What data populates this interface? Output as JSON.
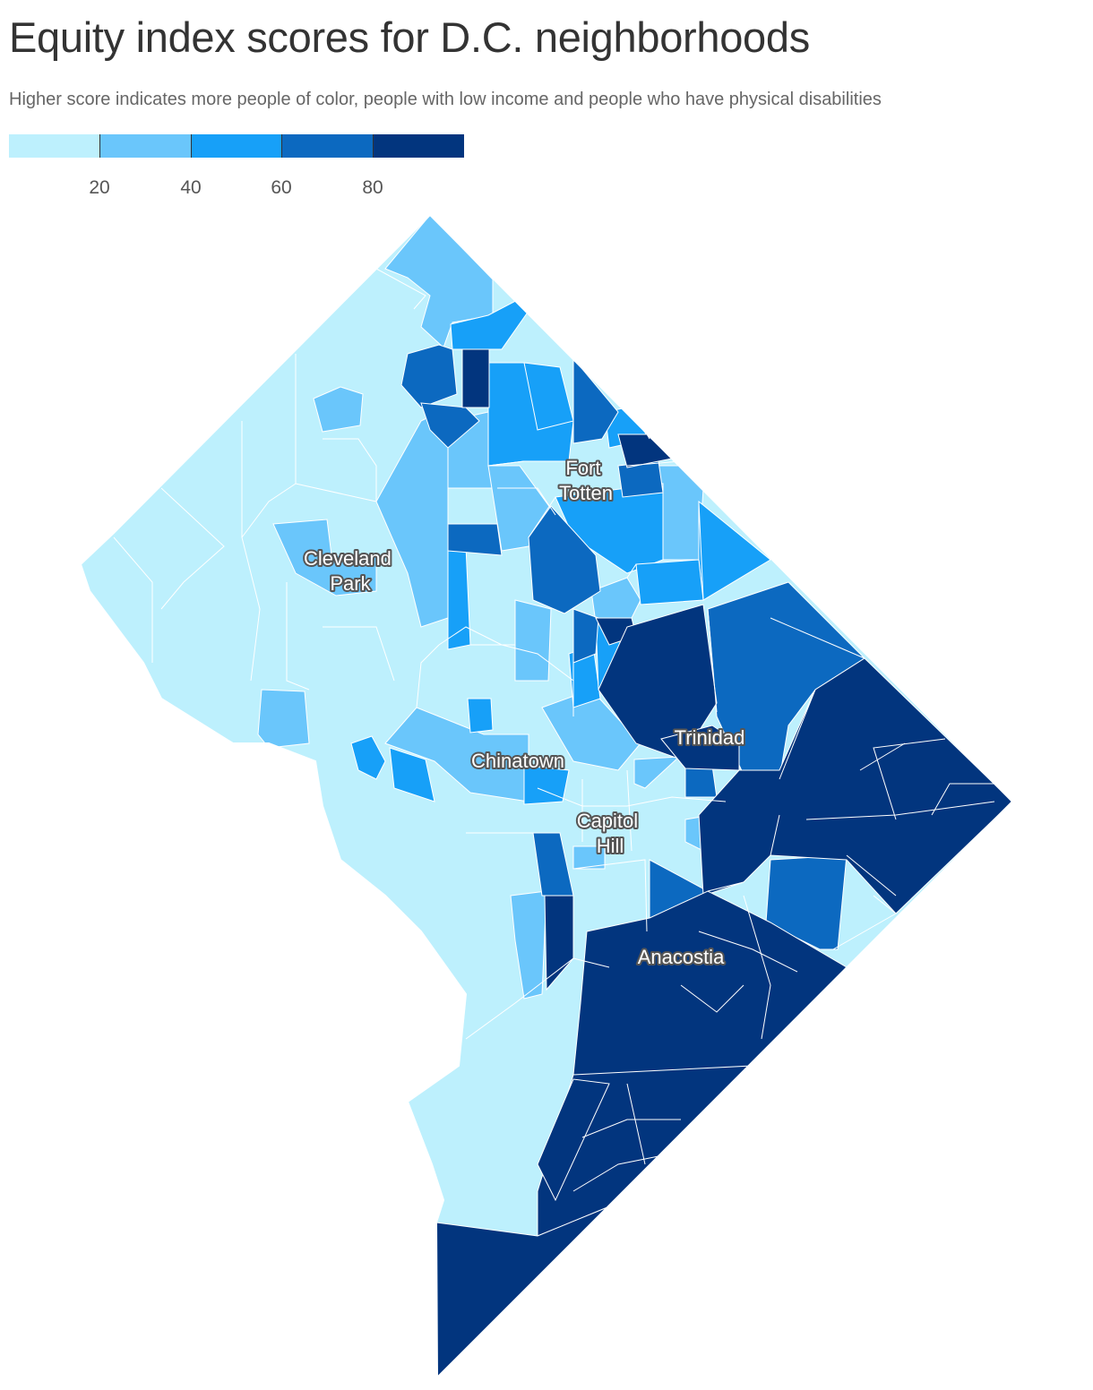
{
  "title": "Equity index scores for D.C. neighborhoods",
  "subtitle": "Higher score indicates more people of color, people with low income and people who have physical disabilities",
  "legend": {
    "colors": [
      "#bdf0fd",
      "#6ac6fb",
      "#17a0f8",
      "#0c69c0",
      "#02357e"
    ],
    "tick_labels": [
      "20",
      "40",
      "60",
      "80"
    ],
    "range": [
      0,
      100
    ]
  },
  "map": {
    "label_color": "#ffffff",
    "label_outline_color": "#555555",
    "places": [
      {
        "name": "Fort",
        "name2": "Totten"
      },
      {
        "name": "Cleveland",
        "name2": "Park"
      },
      {
        "name": "Trinidad",
        "name2": ""
      },
      {
        "name": "Chinatown",
        "name2": ""
      },
      {
        "name": "Capitol",
        "name2": "Hill"
      },
      {
        "name": "Anacostia",
        "name2": ""
      }
    ]
  }
}
